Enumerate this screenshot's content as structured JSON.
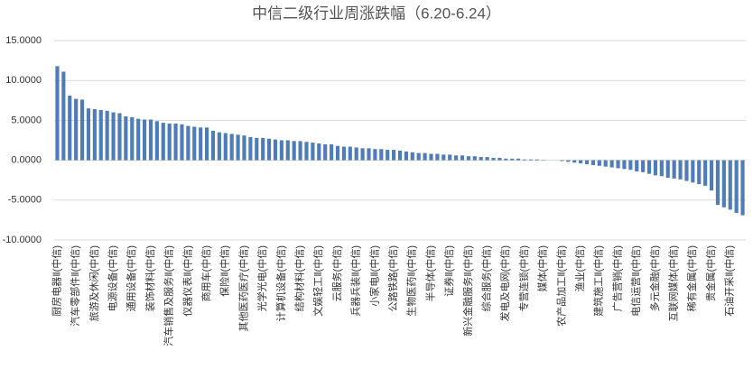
{
  "chart_data": {
    "type": "bar",
    "title": "中信二级行业周涨跌幅（6.20-6.24）",
    "categories": [
      "厨房电器Ⅱ(中信)",
      null,
      null,
      "汽车零部件Ⅱ(中信)",
      null,
      null,
      "旅游及休闲(中信)",
      null,
      null,
      "电源设备(中信)",
      null,
      null,
      "通用设备(中信)",
      null,
      null,
      "装饰材料(中信)",
      null,
      null,
      "汽车销售及服务Ⅱ(中信)",
      null,
      null,
      "仪器仪表Ⅱ(中信)",
      null,
      null,
      "商用车(中信)",
      null,
      null,
      "保险Ⅱ(中信)",
      null,
      null,
      "其他医药医疗(中信)",
      null,
      null,
      "光学光电(中信)",
      null,
      null,
      "计算机设备(中信)",
      null,
      null,
      "结构材料(中信)",
      null,
      null,
      "文娱轻工Ⅱ(中信)",
      null,
      null,
      "云服务(中信)",
      null,
      null,
      "兵器兵装Ⅱ(中信)",
      null,
      null,
      "小家电Ⅱ(中信)",
      null,
      null,
      "公路铁路(中信)",
      null,
      null,
      "生物医药Ⅱ(中信)",
      null,
      null,
      "半导体(中信)",
      null,
      null,
      "证券Ⅱ(中信)",
      null,
      null,
      "新兴金融服务Ⅱ(中信)",
      null,
      null,
      "综合服务(中信)",
      null,
      null,
      "发电及电网(中信)",
      null,
      null,
      "专营连锁(中信)",
      null,
      null,
      "媒体(中信)",
      null,
      null,
      "农产品加工Ⅱ(中信)",
      null,
      null,
      "渔业(中信)",
      null,
      null,
      "建筑施工Ⅱ(中信)",
      null,
      null,
      "广告营销(中信)",
      null,
      null,
      "电信运营Ⅱ(中信)",
      null,
      null,
      "多元金融(中信)",
      null,
      null,
      "互联网媒体(中信)",
      null,
      null,
      "稀有金属(中信)",
      null,
      null,
      "贵金属(中信)",
      null,
      null,
      "石油开采Ⅱ(中信)",
      null,
      null
    ],
    "values": [
      11.8,
      11.1,
      8.1,
      7.7,
      7.6,
      6.5,
      6.4,
      6.3,
      6.2,
      6.0,
      5.9,
      5.5,
      5.4,
      5.2,
      5.1,
      5.1,
      4.9,
      4.7,
      4.6,
      4.6,
      4.5,
      4.3,
      4.2,
      4.1,
      4.1,
      3.7,
      3.5,
      3.4,
      3.3,
      3.2,
      3.1,
      2.9,
      2.8,
      2.8,
      2.7,
      2.6,
      2.5,
      2.5,
      2.4,
      2.4,
      2.3,
      2.2,
      2.1,
      2.0,
      2.0,
      1.8,
      1.7,
      1.7,
      1.6,
      1.5,
      1.5,
      1.4,
      1.4,
      1.3,
      1.3,
      1.2,
      1.1,
      1.0,
      0.9,
      0.9,
      0.8,
      0.8,
      0.7,
      0.7,
      0.6,
      0.6,
      0.5,
      0.5,
      0.4,
      0.4,
      0.3,
      0.3,
      0.2,
      0.2,
      0.2,
      0.1,
      0.1,
      0.1,
      0.05,
      0.0,
      0.0,
      -0.1,
      -0.2,
      -0.3,
      -0.4,
      -0.5,
      -0.6,
      -0.7,
      -0.8,
      -0.9,
      -1.0,
      -1.1,
      -1.2,
      -1.4,
      -1.5,
      -1.7,
      -1.9,
      -2.0,
      -2.2,
      -2.3,
      -2.4,
      -2.6,
      -2.8,
      -3.0,
      -3.2,
      -3.8,
      -5.6,
      -5.9,
      -6.2,
      -6.6,
      -6.9
    ],
    "color": "#4e7cb8",
    "ylim": [
      -10,
      15
    ],
    "yticks": [
      {
        "value": -10,
        "label": "-10.0000"
      },
      {
        "value": -5,
        "label": "-5.0000"
      },
      {
        "value": 0,
        "label": "0.0000"
      },
      {
        "value": 5,
        "label": "5.0000"
      },
      {
        "value": 10,
        "label": "10.0000"
      },
      {
        "value": 15,
        "label": "15.0000"
      }
    ],
    "grid": true
  }
}
